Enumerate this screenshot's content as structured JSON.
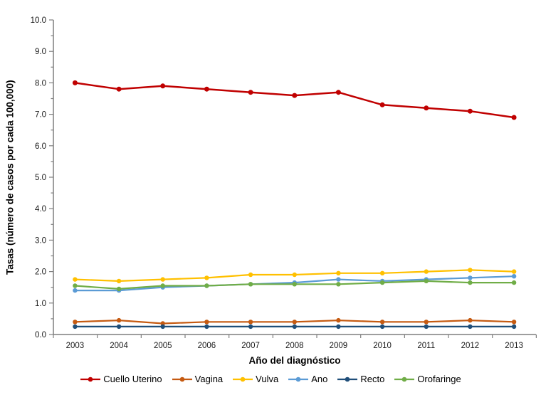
{
  "figure": {
    "x_axis_title": "Año del diagnóstico",
    "y_axis_title": "Tasas (número de casos por cada 100,000)"
  },
  "chart_data": {
    "type": "line",
    "title": "",
    "xlabel": "Año del diagnóstico",
    "ylabel": "Tasas (número de casos por cada 100,000)",
    "x": [
      "2003",
      "2004",
      "2005",
      "2006",
      "2007",
      "2008",
      "2009",
      "2010",
      "2011",
      "2012",
      "2013"
    ],
    "ylim": [
      0,
      10
    ],
    "y_major_tick": 1.0,
    "y_minor_tick": 0.5,
    "y_tick_labels": [
      "0.0",
      "1.0",
      "2.0",
      "3.0",
      "4.0",
      "5.0",
      "6.0",
      "7.0",
      "8.0",
      "9.0",
      "10.0"
    ],
    "grid": false,
    "legend_position": "bottom",
    "marker": "circle",
    "axis_color": "#7F7F7F",
    "text_color": "#1a1a1a",
    "series": [
      {
        "name": "Cuello Uterino",
        "color": "#C00000",
        "values": [
          8.0,
          7.8,
          7.9,
          7.8,
          7.7,
          7.6,
          7.7,
          7.3,
          7.2,
          7.1,
          6.9
        ]
      },
      {
        "name": "Vagina",
        "color": "#C55A11",
        "values": [
          0.4,
          0.45,
          0.35,
          0.4,
          0.4,
          0.4,
          0.45,
          0.4,
          0.4,
          0.45,
          0.4
        ]
      },
      {
        "name": "Vulva",
        "color": "#FFC000",
        "values": [
          1.75,
          1.7,
          1.75,
          1.8,
          1.9,
          1.9,
          1.95,
          1.95,
          2.0,
          2.05,
          2.0
        ]
      },
      {
        "name": "Ano",
        "color": "#5B9BD5",
        "values": [
          1.4,
          1.4,
          1.5,
          1.55,
          1.6,
          1.65,
          1.75,
          1.7,
          1.75,
          1.8,
          1.85
        ]
      },
      {
        "name": "Recto",
        "color": "#1F4E79",
        "values": [
          0.25,
          0.25,
          0.25,
          0.25,
          0.25,
          0.25,
          0.25,
          0.25,
          0.25,
          0.25,
          0.25
        ]
      },
      {
        "name": "Orofaringe",
        "color": "#70AD47",
        "values": [
          1.55,
          1.45,
          1.55,
          1.55,
          1.6,
          1.6,
          1.6,
          1.65,
          1.7,
          1.65,
          1.65
        ]
      }
    ]
  }
}
